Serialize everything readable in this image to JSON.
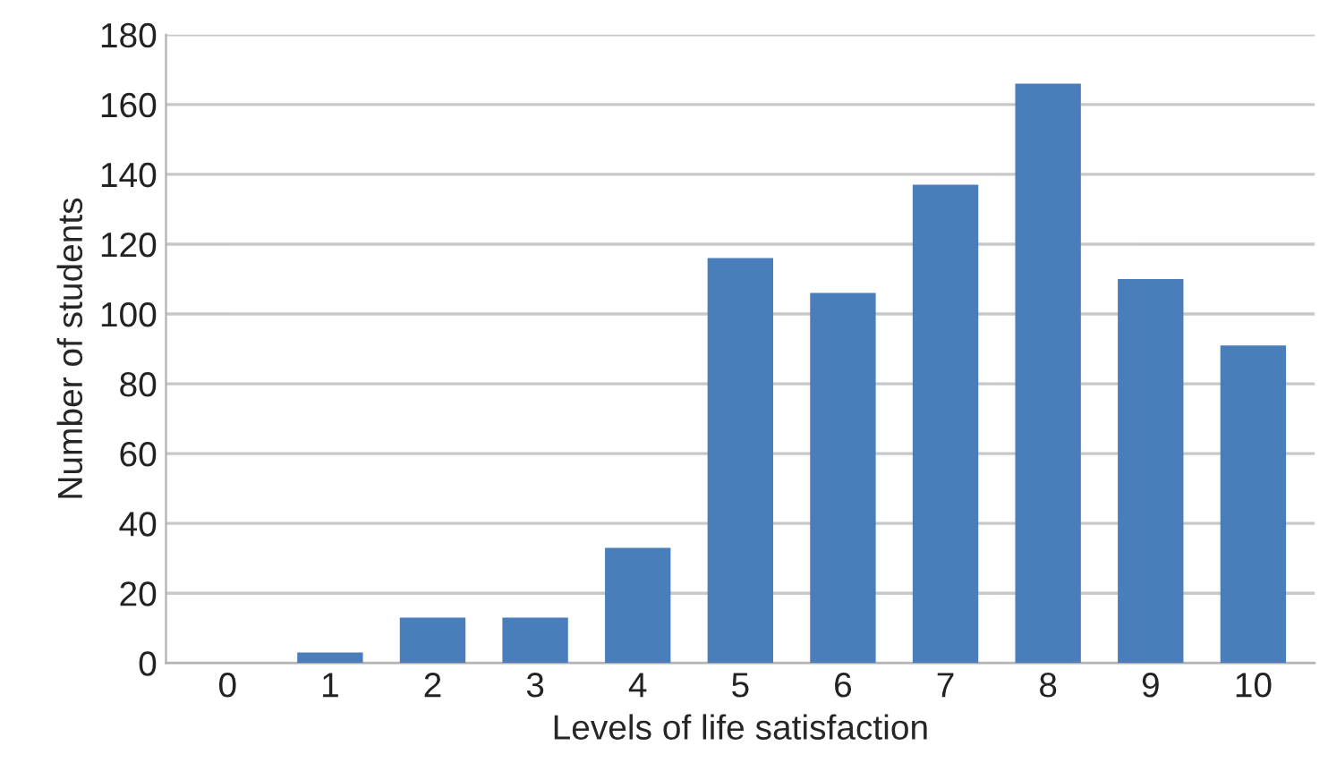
{
  "chart_data": {
    "type": "bar",
    "xlabel": "Levels of life satisfaction",
    "ylabel": "Number of students",
    "categories": [
      "0",
      "1",
      "2",
      "3",
      "4",
      "5",
      "6",
      "7",
      "8",
      "9",
      "10"
    ],
    "values": [
      0,
      3,
      13,
      13,
      33,
      116,
      106,
      137,
      166,
      110,
      91
    ],
    "color": "#4a7ebb",
    "ylim": [
      0,
      180
    ],
    "yticks": [
      0,
      20,
      40,
      60,
      80,
      100,
      120,
      140,
      160,
      180
    ],
    "grid": "y",
    "legend": false
  }
}
